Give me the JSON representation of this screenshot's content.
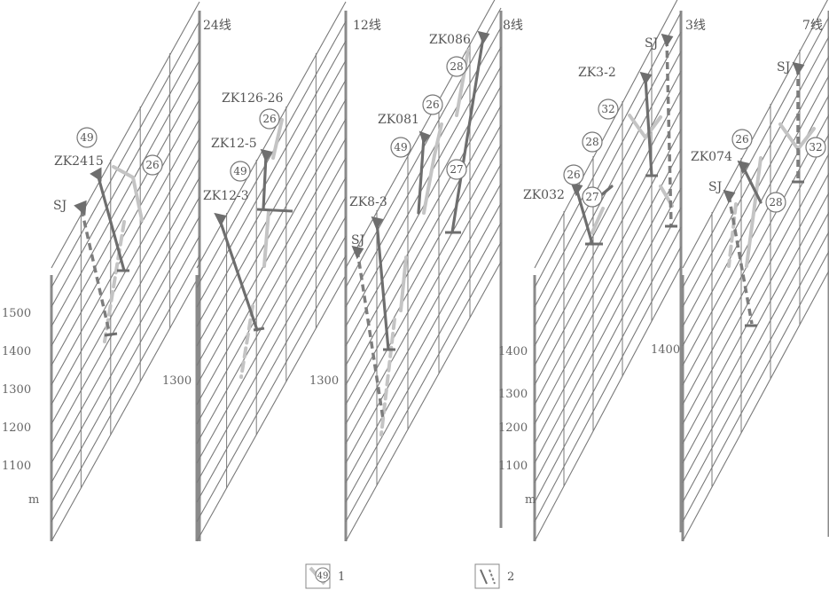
{
  "panels": [
    {
      "line_label": "24线",
      "holes": [
        "ZK2415",
        "SJ"
      ],
      "circles": [
        "49",
        "26"
      ],
      "ticks": [
        "1500",
        "1400",
        "1300",
        "1200",
        "1100",
        "m"
      ]
    },
    {
      "line_label": "12线",
      "holes": [
        "ZK126-26",
        "ZK12-5",
        "ZK12-3"
      ],
      "circles": [
        "26",
        "49"
      ],
      "ticks": [
        "1300"
      ]
    },
    {
      "line_label": "8线",
      "holes": [
        "ZK086",
        "ZK081",
        "ZK8-3",
        "SJ"
      ],
      "circles": [
        "28",
        "26",
        "49",
        "27"
      ],
      "ticks": [
        "1300"
      ]
    },
    {
      "line_label": "3线",
      "holes": [
        "SJ",
        "ZK3-2",
        "ZK032"
      ],
      "circles": [
        "32",
        "28",
        "26",
        "27"
      ],
      "ticks": [
        "1400",
        "1300",
        "1200",
        "1100",
        "m",
        "1400"
      ]
    },
    {
      "line_label": "7线",
      "holes": [
        "SJ",
        "ZK074",
        "SJ"
      ],
      "circles": [
        "26",
        "32",
        "28"
      ],
      "ticks": []
    }
  ],
  "legend": {
    "item1_icon": "49",
    "item1_label": "1",
    "item2_label": "2"
  },
  "colors": {
    "grid": "#7a7a7a",
    "frame": "#8a8a8a",
    "solid_hole": "#6e6e6e",
    "dashed_hole": "#7d7d7d",
    "orebody": "#c4c4c4"
  }
}
